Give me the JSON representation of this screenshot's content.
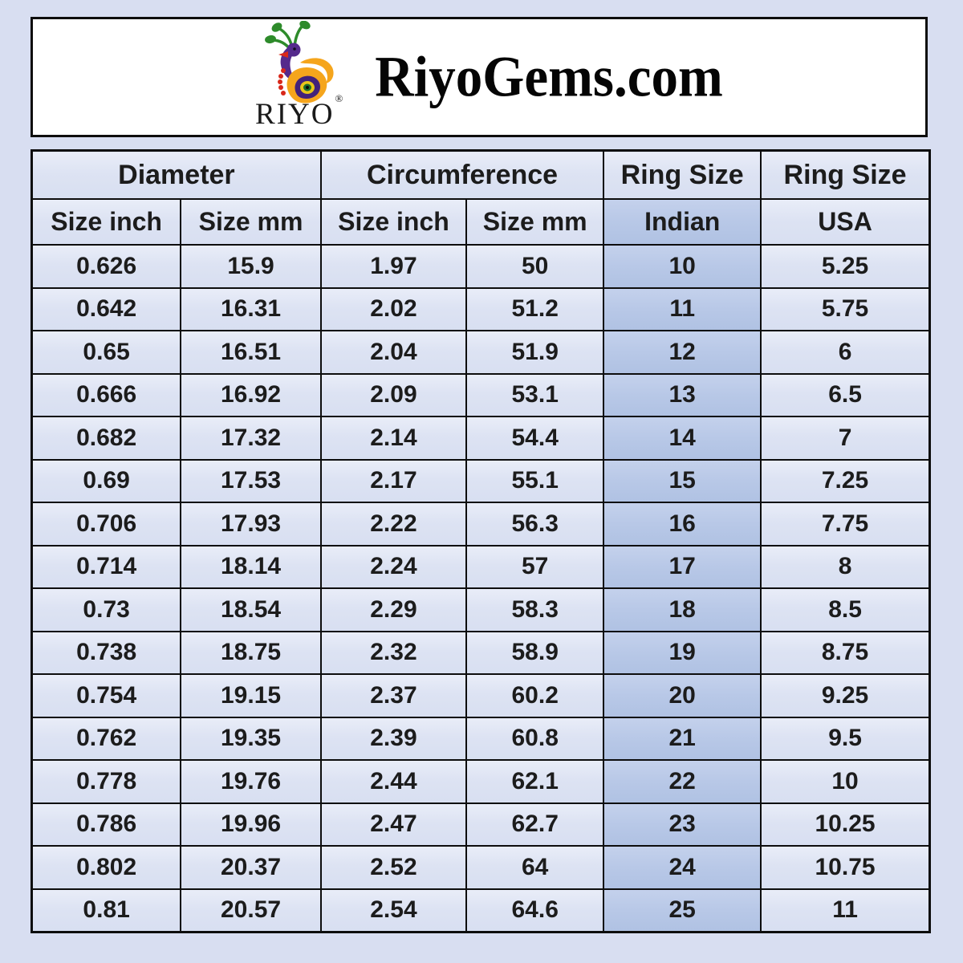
{
  "header": {
    "title": "RiyoGems.com",
    "brand": "RIYO",
    "registered_mark": "®"
  },
  "colors": {
    "page_background": "#d8def1",
    "cell_background": "#dde3f3",
    "highlight_column_background": "#b8c8e7",
    "border": "#0d0d0d",
    "banner_background": "#ffffff",
    "logo_purple": "#552a8c",
    "logo_green": "#2e8b2b",
    "logo_orange": "#f5a51c",
    "logo_red": "#d8281a",
    "logo_yellow": "#e8c619"
  },
  "chart_data": {
    "type": "table",
    "title": "RiyoGems.com ring size conversion chart",
    "column_groups": [
      {
        "label": "Diameter",
        "span": 2
      },
      {
        "label": "Circumference",
        "span": 2
      },
      {
        "label": "Ring Size",
        "span": 1
      },
      {
        "label": "Ring Size",
        "span": 1
      }
    ],
    "columns": [
      "Size inch",
      "Size mm",
      "Size inch",
      "Size mm",
      "Indian",
      "USA"
    ],
    "highlight_column_index": 4,
    "rows": [
      [
        0.626,
        15.9,
        1.97,
        50,
        10,
        5.25
      ],
      [
        0.642,
        16.31,
        2.02,
        51.2,
        11,
        5.75
      ],
      [
        0.65,
        16.51,
        2.04,
        51.9,
        12,
        6
      ],
      [
        0.666,
        16.92,
        2.09,
        53.1,
        13,
        6.5
      ],
      [
        0.682,
        17.32,
        2.14,
        54.4,
        14,
        7
      ],
      [
        0.69,
        17.53,
        2.17,
        55.1,
        15,
        7.25
      ],
      [
        0.706,
        17.93,
        2.22,
        56.3,
        16,
        7.75
      ],
      [
        0.714,
        18.14,
        2.24,
        57,
        17,
        8
      ],
      [
        0.73,
        18.54,
        2.29,
        58.3,
        18,
        8.5
      ],
      [
        0.738,
        18.75,
        2.32,
        58.9,
        19,
        8.75
      ],
      [
        0.754,
        19.15,
        2.37,
        60.2,
        20,
        9.25
      ],
      [
        0.762,
        19.35,
        2.39,
        60.8,
        21,
        9.5
      ],
      [
        0.778,
        19.76,
        2.44,
        62.1,
        22,
        10
      ],
      [
        0.786,
        19.96,
        2.47,
        62.7,
        23,
        10.25
      ],
      [
        0.802,
        20.37,
        2.52,
        64,
        24,
        10.75
      ],
      [
        0.81,
        20.57,
        2.54,
        64.6,
        25,
        11
      ]
    ]
  }
}
